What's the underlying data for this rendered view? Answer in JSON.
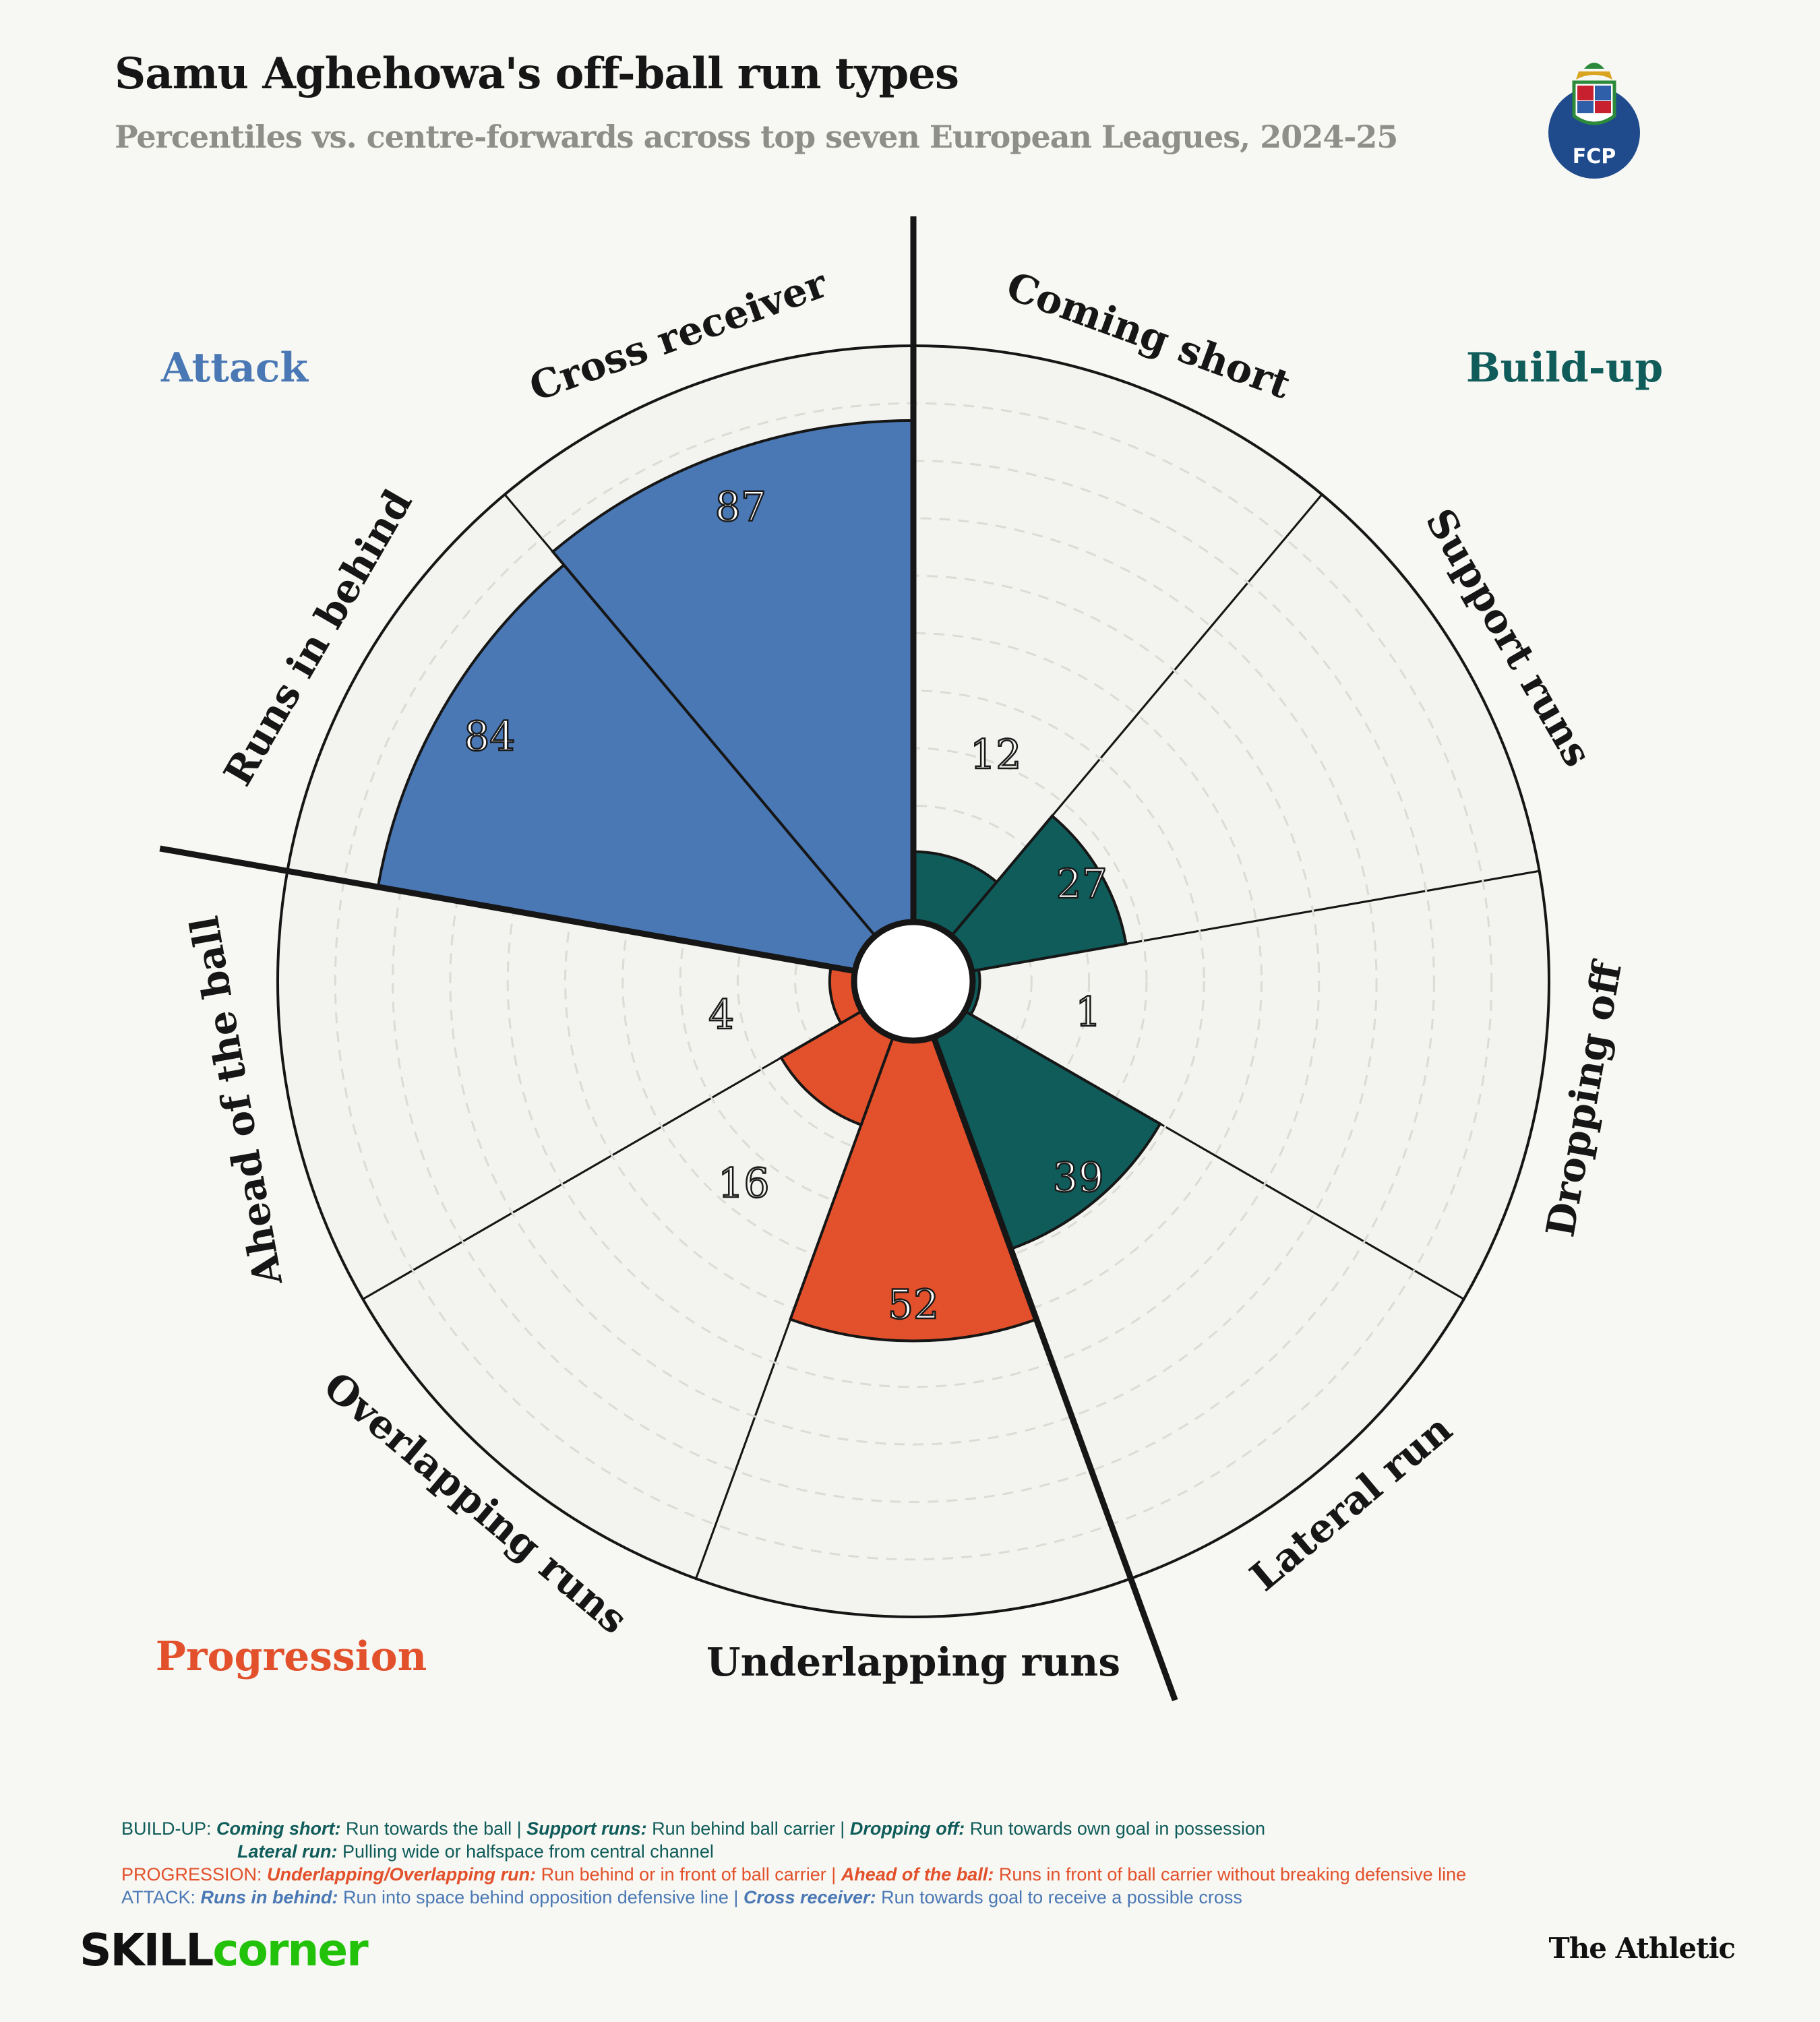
{
  "header": {
    "title": "Samu Aghehowa's off-ball run types",
    "subtitle": "Percentiles vs. centre-forwards across top seven European Leagues, 2024-25"
  },
  "logo": {
    "letters": "FCP"
  },
  "chart_data": {
    "type": "polar-bar",
    "title": "Samu Aghehowa's off-ball run types",
    "subtitle": "Percentiles vs. centre-forwards across top seven European Leagues, 2024-25",
    "rlim": [
      0,
      100
    ],
    "grid": true,
    "categories": [
      "Coming short",
      "Support runs",
      "Dropping off",
      "Lateral run",
      "Underlapping runs",
      "Overlapping runs",
      "Ahead of the ball",
      "Runs in behind",
      "Cross receiver"
    ],
    "values": [
      12,
      27,
      1,
      39,
      52,
      16,
      4,
      84,
      87
    ],
    "groups": [
      "Build-up",
      "Build-up",
      "Build-up",
      "Build-up",
      "Progression",
      "Progression",
      "Progression",
      "Attack",
      "Attack"
    ],
    "group_labels": {
      "attack": "Attack",
      "buildup": "Build-up",
      "progression": "Progression"
    },
    "colors": {
      "Build-up": "#0f5c5a",
      "Progression": "#e2512b",
      "Attack": "#4a78b5"
    }
  },
  "footer": {
    "buildup": {
      "prefix": "BUILD-UP: ",
      "t1": "Coming short:",
      "d1": " Run towards the ball | ",
      "t2": "Support runs:",
      "d2": " Run behind ball carrier | ",
      "t3": "Dropping off:",
      "d3": " Run towards own goal in possession",
      "t4": "Lateral run:",
      "d4": " Pulling wide or halfspace from central channel"
    },
    "progression": {
      "prefix": "PROGRESSION: ",
      "t1": "Underlapping/Overlapping run:",
      "d1": " Run behind or in front of ball carrier | ",
      "t2": "Ahead of the ball:",
      "d2": " Runs in front of ball carrier without breaking defensive line"
    },
    "attack": {
      "prefix": "ATTACK: ",
      "t1": "Runs in behind:",
      "d1": " Run into space behind opposition defensive line | ",
      "t2": "Cross receiver:",
      "d2": " Run towards goal to receive a possible cross"
    }
  },
  "brand": {
    "skill_1": "SKILL",
    "skill_2": "corner",
    "athletic": "The Athletic"
  }
}
